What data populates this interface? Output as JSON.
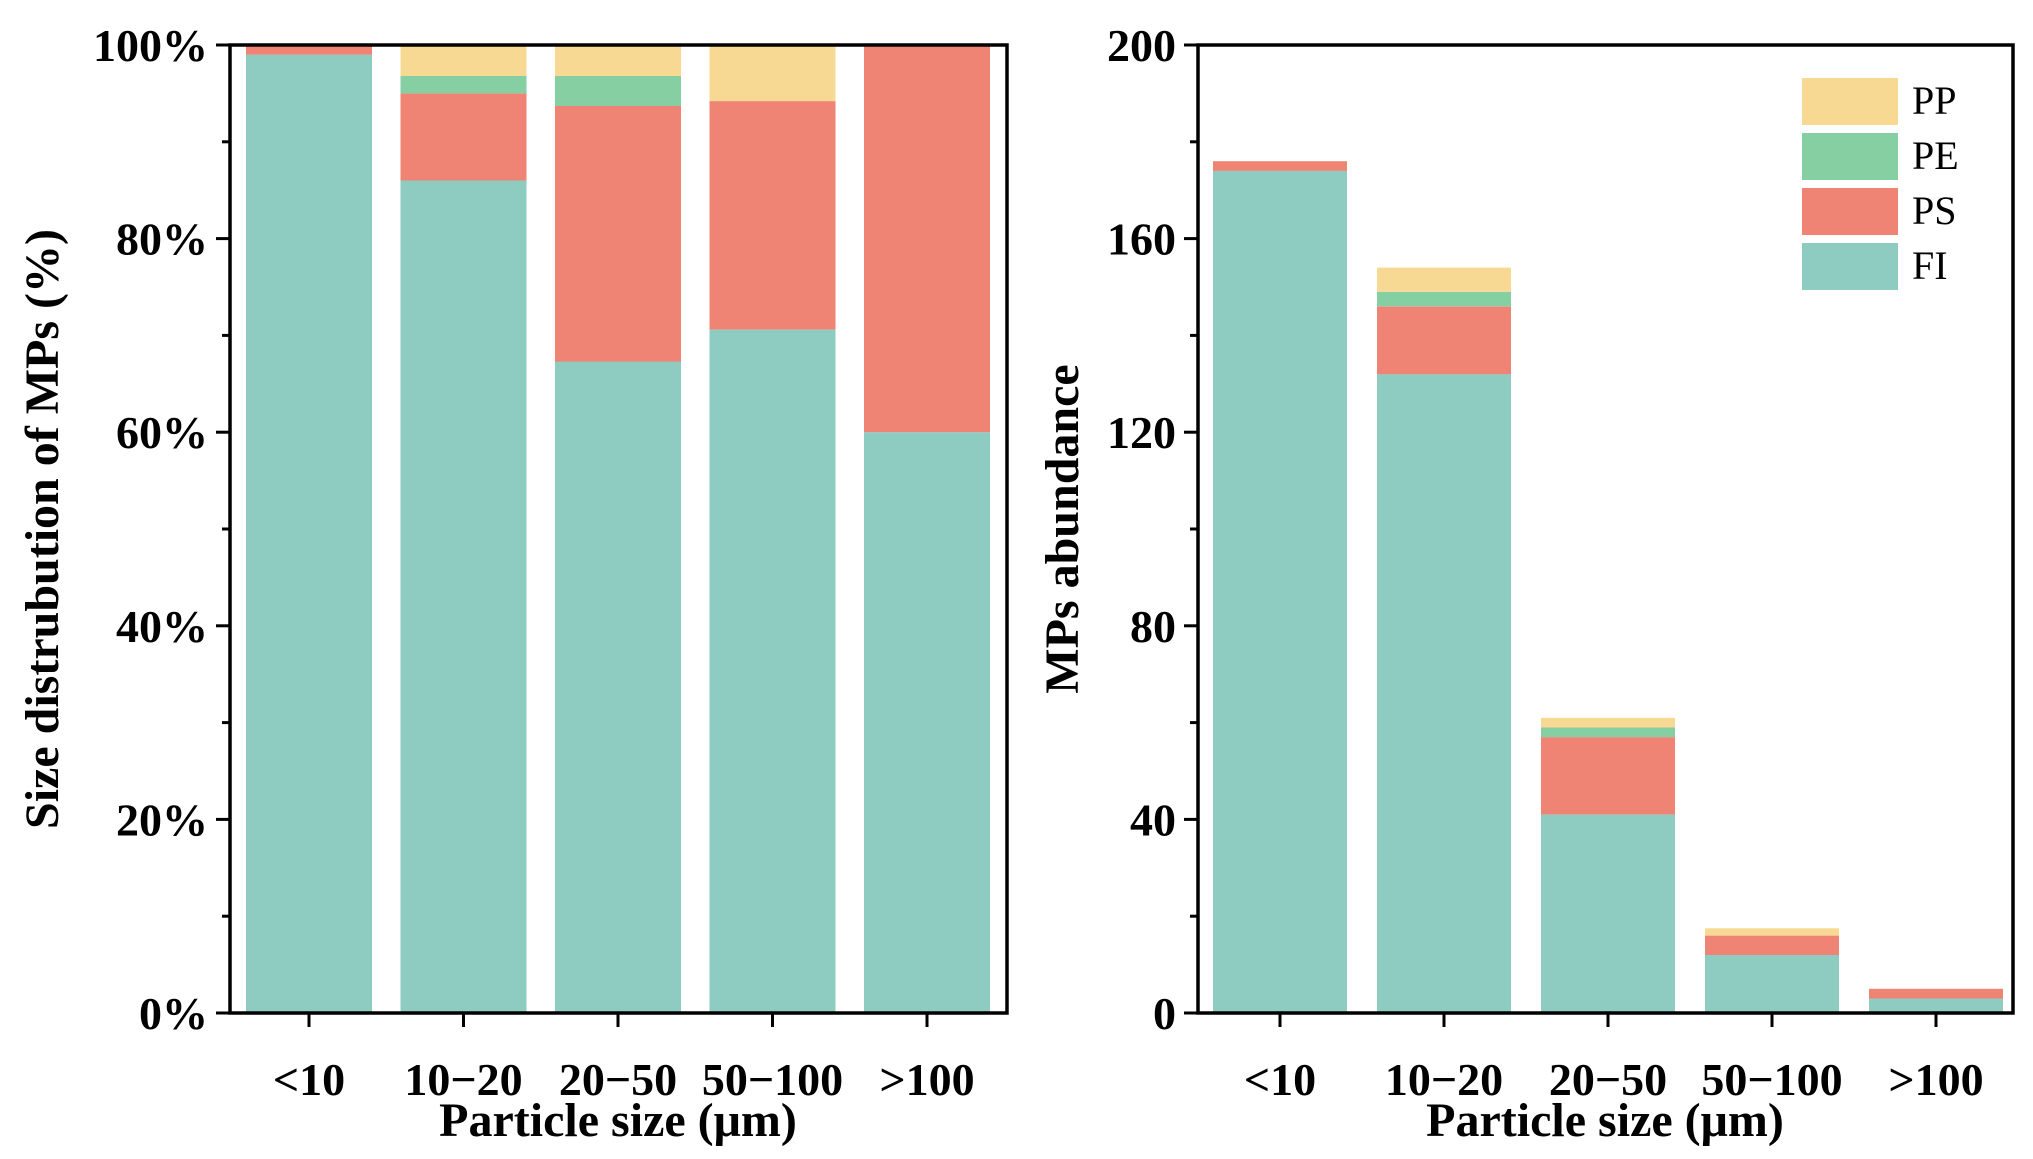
{
  "chart_data": [
    {
      "type": "bar",
      "stacked": true,
      "categories": [
        "<10",
        "10−20",
        "20−50",
        "50−100",
        ">100"
      ],
      "series": [
        {
          "name": "FI",
          "values": [
            99.0,
            86.0,
            67.3,
            70.6,
            60.0
          ]
        },
        {
          "name": "PS",
          "values": [
            1.0,
            9.0,
            26.4,
            23.6,
            40.0
          ]
        },
        {
          "name": "PE",
          "values": [
            0.0,
            1.8,
            3.1,
            0.0,
            0.0
          ]
        },
        {
          "name": "PP",
          "values": [
            0.0,
            3.2,
            3.2,
            5.8,
            0.0
          ]
        }
      ],
      "xlabel": "Particle size (μm)",
      "ylabel": "Size distrubution of MPs (%)",
      "ylim": [
        0,
        100
      ],
      "yticks": [
        0,
        20,
        40,
        60,
        80,
        100
      ],
      "ytick_labels": [
        "0%",
        "20%",
        "40%",
        "60%",
        "80%",
        "100%"
      ],
      "grid": false
    },
    {
      "type": "bar",
      "stacked": true,
      "categories": [
        "<10",
        "10−20",
        "20−50",
        "50−100",
        ">100"
      ],
      "series": [
        {
          "name": "FI",
          "values": [
            174,
            132,
            41,
            12,
            3
          ]
        },
        {
          "name": "PS",
          "values": [
            2,
            14,
            16,
            4,
            2
          ]
        },
        {
          "name": "PE",
          "values": [
            0,
            3,
            2,
            0,
            0
          ]
        },
        {
          "name": "PP",
          "values": [
            0,
            5,
            2,
            1.5,
            0
          ]
        }
      ],
      "xlabel": "Particle size (μm)",
      "ylabel": "MPs abundance",
      "ylim": [
        0,
        200
      ],
      "yticks": [
        0,
        40,
        80,
        120,
        160,
        200
      ],
      "ytick_labels": [
        "0",
        "40",
        "80",
        "120",
        "160",
        "200"
      ],
      "grid": false,
      "legend": {
        "position": "top-right",
        "entries": [
          "PP",
          "PE",
          "PS",
          "FI"
        ]
      }
    }
  ],
  "colors": {
    "FI": "#8ecbc0",
    "PS": "#ef8475",
    "PE": "#86cfa3",
    "PP": "#f8d994"
  }
}
